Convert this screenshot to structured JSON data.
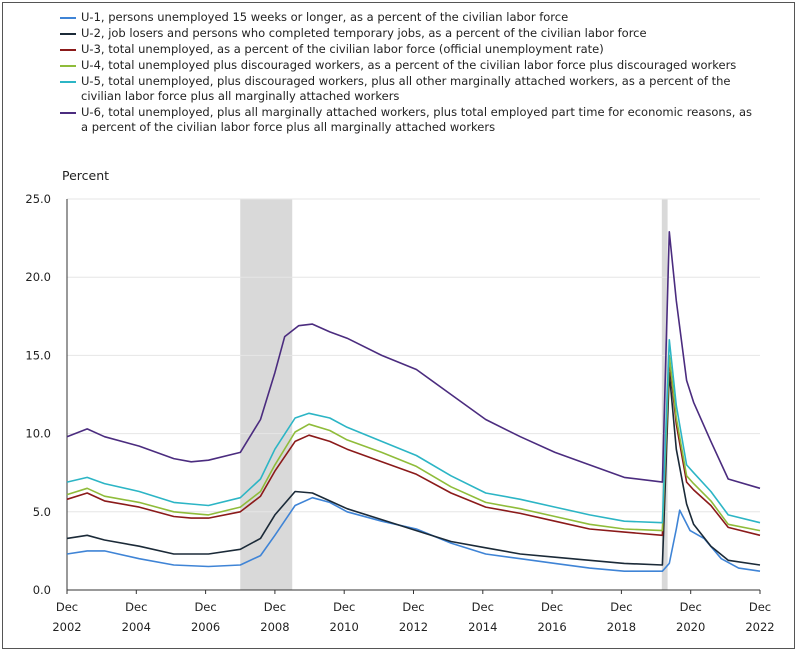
{
  "chart_data": {
    "type": "line",
    "ylabel": "Percent",
    "ylim": [
      0,
      25
    ],
    "y_ticks": [
      "25.0",
      "20.0",
      "15.0",
      "10.0",
      "5.0",
      "0.0"
    ],
    "x_range": [
      2002.917,
      2022.917
    ],
    "x_ticks": [
      {
        "x": 2002.917,
        "top": "Dec",
        "bottom": "2002"
      },
      {
        "x": 2004.917,
        "top": "Dec",
        "bottom": "2004"
      },
      {
        "x": 2006.917,
        "top": "Dec",
        "bottom": "2006"
      },
      {
        "x": 2008.917,
        "top": "Dec",
        "bottom": "2008"
      },
      {
        "x": 2010.917,
        "top": "Dec",
        "bottom": "2010"
      },
      {
        "x": 2012.917,
        "top": "Dec",
        "bottom": "2012"
      },
      {
        "x": 2014.917,
        "top": "Dec",
        "bottom": "2014"
      },
      {
        "x": 2016.917,
        "top": "Dec",
        "bottom": "2016"
      },
      {
        "x": 2018.917,
        "top": "Dec",
        "bottom": "2018"
      },
      {
        "x": 2020.917,
        "top": "Dec",
        "bottom": "2020"
      },
      {
        "x": 2022.917,
        "top": "Dec",
        "bottom": "2022"
      }
    ],
    "recessions": [
      [
        2007.917,
        2009.417
      ],
      [
        2020.083,
        2020.25
      ]
    ],
    "series": [
      {
        "name": "U-1, persons unemployed 15 weeks or longer, as a percent of the civilian labor force",
        "color": "#3f84d6",
        "points": [
          [
            2002.917,
            2.3
          ],
          [
            2003.5,
            2.5
          ],
          [
            2004,
            2.5
          ],
          [
            2005,
            2.0
          ],
          [
            2006,
            1.6
          ],
          [
            2007,
            1.5
          ],
          [
            2007.917,
            1.6
          ],
          [
            2008.5,
            2.2
          ],
          [
            2008.917,
            3.5
          ],
          [
            2009.5,
            5.4
          ],
          [
            2010,
            5.9
          ],
          [
            2010.5,
            5.6
          ],
          [
            2011,
            5.0
          ],
          [
            2012,
            4.4
          ],
          [
            2013,
            3.9
          ],
          [
            2014,
            3.0
          ],
          [
            2015,
            2.3
          ],
          [
            2016,
            2.0
          ],
          [
            2017,
            1.7
          ],
          [
            2018,
            1.4
          ],
          [
            2019,
            1.2
          ],
          [
            2020.1,
            1.2
          ],
          [
            2020.3,
            1.7
          ],
          [
            2020.5,
            3.9
          ],
          [
            2020.6,
            5.1
          ],
          [
            2020.9,
            3.8
          ],
          [
            2021.3,
            3.3
          ],
          [
            2021.8,
            2.0
          ],
          [
            2022.3,
            1.4
          ],
          [
            2022.917,
            1.2
          ]
        ]
      },
      {
        "name": "U-2, job losers and persons who completed temporary jobs, as a percent of the civilian labor force",
        "color": "#1b2a38",
        "points": [
          [
            2002.917,
            3.3
          ],
          [
            2003.5,
            3.5
          ],
          [
            2004,
            3.2
          ],
          [
            2005,
            2.8
          ],
          [
            2006,
            2.3
          ],
          [
            2007,
            2.3
          ],
          [
            2007.917,
            2.6
          ],
          [
            2008.5,
            3.3
          ],
          [
            2008.917,
            4.8
          ],
          [
            2009.5,
            6.3
          ],
          [
            2010,
            6.2
          ],
          [
            2010.5,
            5.7
          ],
          [
            2011,
            5.2
          ],
          [
            2012,
            4.5
          ],
          [
            2013,
            3.8
          ],
          [
            2014,
            3.1
          ],
          [
            2015,
            2.7
          ],
          [
            2016,
            2.3
          ],
          [
            2017,
            2.1
          ],
          [
            2018,
            1.9
          ],
          [
            2019,
            1.7
          ],
          [
            2020.1,
            1.6
          ],
          [
            2020.3,
            13.9
          ],
          [
            2020.5,
            9.0
          ],
          [
            2020.8,
            5.5
          ],
          [
            2021,
            4.2
          ],
          [
            2021.5,
            2.8
          ],
          [
            2022,
            1.9
          ],
          [
            2022.917,
            1.6
          ]
        ]
      },
      {
        "name": "U-3, total unemployed, as a percent of the civilian labor force (official unemployment rate)",
        "color": "#8b1a1a",
        "points": [
          [
            2002.917,
            5.8
          ],
          [
            2003.5,
            6.2
          ],
          [
            2004,
            5.7
          ],
          [
            2005,
            5.3
          ],
          [
            2006,
            4.7
          ],
          [
            2006.5,
            4.6
          ],
          [
            2007,
            4.6
          ],
          [
            2007.917,
            5.0
          ],
          [
            2008.5,
            6.0
          ],
          [
            2008.917,
            7.6
          ],
          [
            2009.5,
            9.5
          ],
          [
            2009.9,
            9.9
          ],
          [
            2010.5,
            9.5
          ],
          [
            2011,
            9.0
          ],
          [
            2012,
            8.2
          ],
          [
            2013,
            7.4
          ],
          [
            2014,
            6.2
          ],
          [
            2015,
            5.3
          ],
          [
            2016,
            4.9
          ],
          [
            2017,
            4.4
          ],
          [
            2018,
            3.9
          ],
          [
            2019,
            3.7
          ],
          [
            2020.1,
            3.5
          ],
          [
            2020.3,
            14.7
          ],
          [
            2020.5,
            10.6
          ],
          [
            2020.8,
            6.9
          ],
          [
            2021,
            6.4
          ],
          [
            2021.5,
            5.4
          ],
          [
            2022,
            4.0
          ],
          [
            2022.917,
            3.5
          ]
        ]
      },
      {
        "name": "U-4, total unemployed plus discouraged workers, as a percent of the civilian labor force plus discouraged workers",
        "color": "#8fbc3a",
        "points": [
          [
            2002.917,
            6.1
          ],
          [
            2003.5,
            6.5
          ],
          [
            2004,
            6.0
          ],
          [
            2005,
            5.6
          ],
          [
            2006,
            5.0
          ],
          [
            2006.5,
            4.9
          ],
          [
            2007,
            4.8
          ],
          [
            2007.917,
            5.3
          ],
          [
            2008.5,
            6.3
          ],
          [
            2008.917,
            8.0
          ],
          [
            2009.5,
            10.1
          ],
          [
            2009.9,
            10.6
          ],
          [
            2010.5,
            10.2
          ],
          [
            2011,
            9.6
          ],
          [
            2012,
            8.8
          ],
          [
            2013,
            7.9
          ],
          [
            2014,
            6.6
          ],
          [
            2015,
            5.6
          ],
          [
            2016,
            5.2
          ],
          [
            2017,
            4.7
          ],
          [
            2018,
            4.2
          ],
          [
            2019,
            3.9
          ],
          [
            2020.1,
            3.8
          ],
          [
            2020.3,
            15.0
          ],
          [
            2020.5,
            11.0
          ],
          [
            2020.8,
            7.3
          ],
          [
            2021,
            6.8
          ],
          [
            2021.5,
            5.7
          ],
          [
            2022,
            4.2
          ],
          [
            2022.917,
            3.8
          ]
        ]
      },
      {
        "name": "U-5, total unemployed, plus discouraged workers, plus all other marginally attached workers, as a percent of the civilian labor force plus all marginally attached workers",
        "color": "#2cb5c5",
        "points": [
          [
            2002.917,
            6.9
          ],
          [
            2003.5,
            7.2
          ],
          [
            2004,
            6.8
          ],
          [
            2005,
            6.3
          ],
          [
            2006,
            5.6
          ],
          [
            2006.5,
            5.5
          ],
          [
            2007,
            5.4
          ],
          [
            2007.917,
            5.9
          ],
          [
            2008.5,
            7.1
          ],
          [
            2008.917,
            9.0
          ],
          [
            2009.5,
            11.0
          ],
          [
            2009.9,
            11.3
          ],
          [
            2010.5,
            11.0
          ],
          [
            2011,
            10.4
          ],
          [
            2012,
            9.5
          ],
          [
            2013,
            8.6
          ],
          [
            2014,
            7.3
          ],
          [
            2015,
            6.2
          ],
          [
            2016,
            5.8
          ],
          [
            2017,
            5.3
          ],
          [
            2018,
            4.8
          ],
          [
            2019,
            4.4
          ],
          [
            2020.1,
            4.3
          ],
          [
            2020.3,
            16.0
          ],
          [
            2020.5,
            11.8
          ],
          [
            2020.8,
            8.0
          ],
          [
            2021,
            7.5
          ],
          [
            2021.5,
            6.3
          ],
          [
            2022,
            4.8
          ],
          [
            2022.917,
            4.3
          ]
        ]
      },
      {
        "name": "U-6, total unemployed, plus all marginally attached workers, plus total employed part time for economic reasons, as a percent of the civilian labor force plus all marginally attached workers",
        "color": "#4b2c7f",
        "points": [
          [
            2002.917,
            9.8
          ],
          [
            2003.5,
            10.3
          ],
          [
            2004,
            9.8
          ],
          [
            2005,
            9.2
          ],
          [
            2006,
            8.4
          ],
          [
            2006.5,
            8.2
          ],
          [
            2007,
            8.3
          ],
          [
            2007.917,
            8.8
          ],
          [
            2008.5,
            10.9
          ],
          [
            2008.917,
            13.9
          ],
          [
            2009.2,
            16.2
          ],
          [
            2009.6,
            16.9
          ],
          [
            2010,
            17.0
          ],
          [
            2010.5,
            16.5
          ],
          [
            2011,
            16.1
          ],
          [
            2012,
            15.0
          ],
          [
            2013,
            14.1
          ],
          [
            2014,
            12.5
          ],
          [
            2015,
            10.9
          ],
          [
            2016,
            9.8
          ],
          [
            2017,
            8.8
          ],
          [
            2018,
            8.0
          ],
          [
            2019,
            7.2
          ],
          [
            2020.1,
            6.9
          ],
          [
            2020.3,
            22.9
          ],
          [
            2020.5,
            18.5
          ],
          [
            2020.8,
            13.4
          ],
          [
            2021,
            12.0
          ],
          [
            2021.5,
            9.5
          ],
          [
            2022,
            7.1
          ],
          [
            2022.917,
            6.5
          ]
        ]
      }
    ]
  }
}
